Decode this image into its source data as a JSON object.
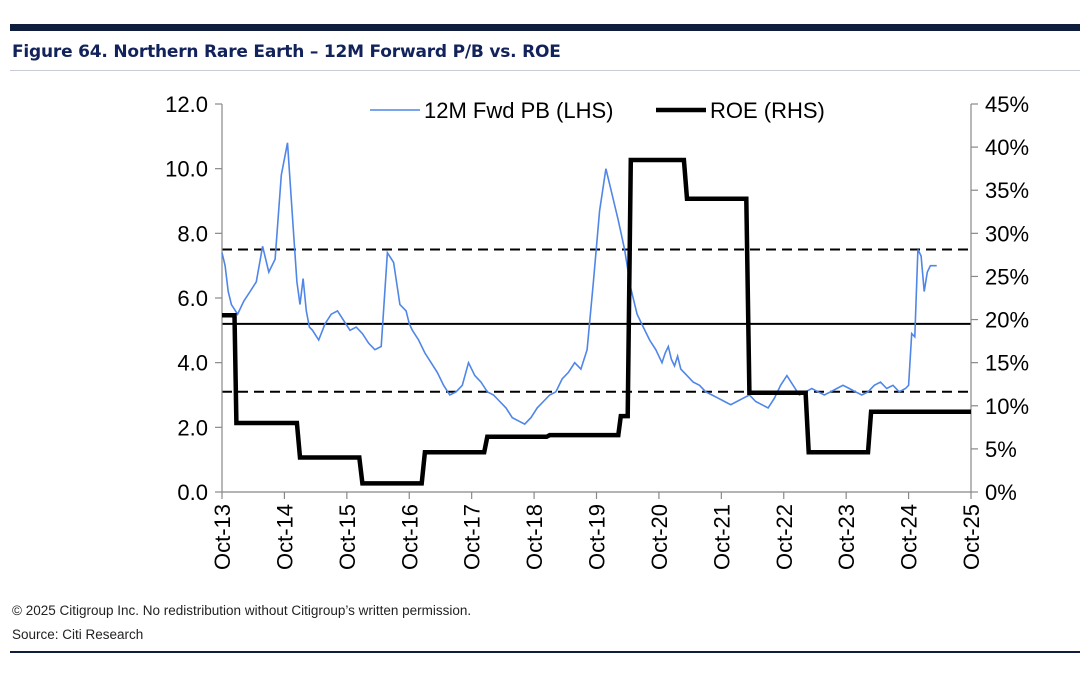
{
  "header": {
    "title": "Figure 64. Northern Rare Earth – 12M Forward P/B vs. ROE"
  },
  "footer": {
    "copyright": "© 2025 Citigroup Inc. No redistribution without Citigroup’s written permission.",
    "source": "Source: Citi Research"
  },
  "colors": {
    "pb_line": "#4f86e8",
    "roe_line": "#000000",
    "brand": "#12225a"
  },
  "chart_data": {
    "type": "line",
    "title": "Figure 64. Northern Rare Earth – 12M Forward P/B vs. ROE",
    "x_tick_labels": [
      "Oct-13",
      "Oct-14",
      "Oct-15",
      "Oct-16",
      "Oct-17",
      "Oct-18",
      "Oct-19",
      "Oct-20",
      "Oct-21",
      "Oct-22",
      "Oct-23",
      "Oct-24",
      "Oct-25"
    ],
    "x_range": [
      2013.75,
      2025.75
    ],
    "left_axis": {
      "label": "12M Fwd PB",
      "min": 0,
      "max": 12,
      "ticks": [
        "0.0",
        "2.0",
        "4.0",
        "6.0",
        "8.0",
        "10.0",
        "12.0"
      ]
    },
    "right_axis": {
      "label": "ROE",
      "min": 0,
      "max": 45,
      "ticks": [
        "0%",
        "5%",
        "10%",
        "15%",
        "20%",
        "25%",
        "30%",
        "35%",
        "40%",
        "45%"
      ]
    },
    "legend": [
      {
        "name": "12M Fwd PB  (LHS)",
        "color": "#4f86e8"
      },
      {
        "name": "ROE  (RHS)",
        "color": "#000000"
      }
    ],
    "reference_lines": [
      {
        "name": "mean",
        "axis": "left",
        "value": 5.2,
        "style": "solid"
      },
      {
        "name": "+1sd",
        "axis": "left",
        "value": 7.5,
        "style": "dashed"
      },
      {
        "name": "-1sd",
        "axis": "left",
        "value": 3.1,
        "style": "dashed"
      }
    ],
    "series": [
      {
        "name": "12M Fwd PB (LHS)",
        "axis": "left",
        "x": [
          2013.75,
          2013.8,
          2013.85,
          2013.9,
          2014.0,
          2014.1,
          2014.2,
          2014.3,
          2014.4,
          2014.5,
          2014.6,
          2014.7,
          2014.8,
          2014.9,
          2014.95,
          2015.0,
          2015.05,
          2015.1,
          2015.15,
          2015.2,
          2015.3,
          2015.4,
          2015.5,
          2015.6,
          2015.7,
          2015.8,
          2015.9,
          2016.0,
          2016.1,
          2016.2,
          2016.3,
          2016.4,
          2016.5,
          2016.6,
          2016.7,
          2016.75,
          2016.8,
          2016.9,
          2017.0,
          2017.1,
          2017.2,
          2017.3,
          2017.4,
          2017.5,
          2017.6,
          2017.7,
          2017.8,
          2017.9,
          2018.0,
          2018.1,
          2018.2,
          2018.3,
          2018.4,
          2018.5,
          2018.6,
          2018.7,
          2018.8,
          2018.9,
          2019.0,
          2019.1,
          2019.2,
          2019.3,
          2019.4,
          2019.5,
          2019.6,
          2019.7,
          2019.8,
          2019.9,
          2020.0,
          2020.1,
          2020.2,
          2020.3,
          2020.4,
          2020.5,
          2020.6,
          2020.7,
          2020.75,
          2020.8,
          2020.85,
          2020.9,
          2020.95,
          2021.0,
          2021.05,
          2021.1,
          2021.2,
          2021.3,
          2021.4,
          2021.5,
          2021.6,
          2021.7,
          2021.8,
          2021.9,
          2022.0,
          2022.1,
          2022.2,
          2022.3,
          2022.4,
          2022.5,
          2022.6,
          2022.7,
          2022.8,
          2022.9,
          2023.0,
          2023.1,
          2023.2,
          2023.3,
          2023.4,
          2023.5,
          2023.6,
          2023.7,
          2023.8,
          2023.9,
          2024.0,
          2024.1,
          2024.2,
          2024.3,
          2024.4,
          2024.5,
          2024.6,
          2024.7,
          2024.75,
          2024.8,
          2024.85,
          2024.9,
          2024.95,
          2025.0,
          2025.05,
          2025.1,
          2025.2
        ],
        "values": [
          7.4,
          7.0,
          6.2,
          5.8,
          5.5,
          5.9,
          6.2,
          6.5,
          7.6,
          6.8,
          7.2,
          9.8,
          10.8,
          7.9,
          6.5,
          5.8,
          6.6,
          5.6,
          5.1,
          5.0,
          4.7,
          5.2,
          5.5,
          5.6,
          5.3,
          5.0,
          5.1,
          4.9,
          4.6,
          4.4,
          4.5,
          7.4,
          7.1,
          5.8,
          5.6,
          5.2,
          5.0,
          4.7,
          4.3,
          4.0,
          3.7,
          3.3,
          3.0,
          3.1,
          3.3,
          4.0,
          3.6,
          3.4,
          3.1,
          3.0,
          2.8,
          2.6,
          2.3,
          2.2,
          2.1,
          2.3,
          2.6,
          2.8,
          3.0,
          3.1,
          3.5,
          3.7,
          4.0,
          3.8,
          4.4,
          6.5,
          8.7,
          10.0,
          9.2,
          8.4,
          7.5,
          6.3,
          5.5,
          5.1,
          4.7,
          4.4,
          4.2,
          4.0,
          4.3,
          4.5,
          4.1,
          3.9,
          4.2,
          3.8,
          3.6,
          3.4,
          3.3,
          3.1,
          3.0,
          2.9,
          2.8,
          2.7,
          2.8,
          2.9,
          3.0,
          2.8,
          2.7,
          2.6,
          2.9,
          3.3,
          3.6,
          3.3,
          3.0,
          3.1,
          3.2,
          3.1,
          3.0,
          3.1,
          3.2,
          3.3,
          3.2,
          3.1,
          3.0,
          3.1,
          3.3,
          3.4,
          3.2,
          3.3,
          3.1,
          3.2,
          3.3,
          4.9,
          4.8,
          7.5,
          7.3,
          6.2,
          6.8,
          7.0,
          7.0
        ]
      },
      {
        "name": "ROE (RHS)",
        "axis": "right",
        "x": [
          2013.75,
          2013.95,
          2013.98,
          2014.95,
          2015.0,
          2015.95,
          2016.0,
          2016.95,
          2017.0,
          2017.95,
          2018.0,
          2018.95,
          2019.0,
          2020.1,
          2020.14,
          2020.25,
          2020.3,
          2021.15,
          2021.2,
          2022.15,
          2022.2,
          2023.1,
          2023.15,
          2024.1,
          2024.15,
          2025.75
        ],
        "values": [
          20.5,
          20.5,
          8.0,
          8.0,
          4.0,
          4.0,
          1.0,
          1.0,
          4.6,
          4.6,
          6.4,
          6.4,
          6.6,
          6.6,
          8.8,
          8.8,
          38.5,
          38.5,
          34.0,
          34.0,
          11.5,
          11.5,
          4.6,
          4.6,
          9.3,
          9.3
        ]
      }
    ]
  }
}
